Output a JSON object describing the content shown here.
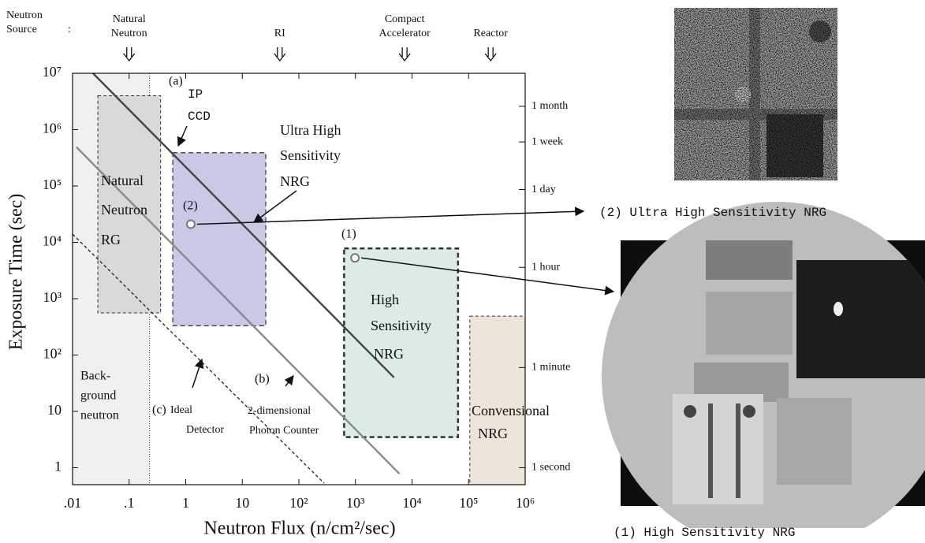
{
  "chart_data": {
    "type": "region",
    "xlabel": "Neutron Flux (n/cm²/sec)",
    "ylabel": "Exposure Time (sec)",
    "xscale": "log",
    "yscale": "log",
    "xlim": [
      0.01,
      1000000
    ],
    "ylim": [
      0.5,
      10000000
    ],
    "y2lim": [
      0.5,
      10000000
    ],
    "xticks": [
      {
        "value": 0.01,
        "label": ".01"
      },
      {
        "value": 0.1,
        "label": ".1"
      },
      1,
      10,
      {
        "value": 100,
        "label": "10²"
      },
      {
        "value": 1000,
        "label": "10³"
      },
      {
        "value": 10000,
        "label": "10⁴"
      },
      {
        "value": 100000,
        "label": "10⁵"
      },
      {
        "value": 1000000,
        "label": "10⁶"
      }
    ],
    "yticks": [
      1,
      10,
      {
        "value": 100,
        "label": "10²"
      },
      {
        "value": 1000,
        "label": "10³"
      },
      {
        "value": 10000,
        "label": "10⁴"
      },
      {
        "value": 100000,
        "label": "10⁵"
      },
      {
        "value": 1000000,
        "label": "10⁶"
      },
      {
        "value": 10000000,
        "label": "10⁷"
      }
    ],
    "y2ticks": [
      {
        "value": 1,
        "label": "1 second"
      },
      {
        "value": 60,
        "label": "1 minute"
      },
      {
        "value": 3600,
        "label": "1 hour"
      },
      {
        "value": 86400,
        "label": "1 day"
      },
      {
        "value": 604800,
        "label": "1 week"
      },
      {
        "value": 2592000,
        "label": "1 month"
      }
    ],
    "source_heading": [
      "Neutron",
      "Source",
      ":"
    ],
    "sources": [
      {
        "label": [
          "Natural",
          "Neutron"
        ],
        "x": 0.1
      },
      {
        "label": [
          "RI"
        ],
        "x": 46
      },
      {
        "label": [
          "Compact",
          "Accelerator"
        ],
        "x": 7400
      },
      {
        "label": [
          "Reactor"
        ],
        "x": 245000
      }
    ],
    "background": {
      "label": [
        "Back-",
        "ground",
        "neutron"
      ],
      "x": [
        0.01,
        0.23
      ],
      "color": "#f0f0f0"
    },
    "regions": [
      {
        "label": [
          "Natural",
          "Neutron",
          "RG"
        ],
        "x": [
          0.028,
          0.36
        ],
        "y": [
          560,
          4000000
        ],
        "color": "#d9d9d9"
      },
      {
        "label": [
          "Ultra High",
          "Sensitivity",
          "NRG"
        ],
        "x": [
          0.59,
          26
        ],
        "y": [
          330,
          390000
        ],
        "color": "#c9c9e6"
      },
      {
        "label": [
          "High",
          "Sensitivity",
          "NRG"
        ],
        "x": [
          630,
          65000
        ],
        "y": [
          3.5,
          7800
        ],
        "color": "#dcece5"
      },
      {
        "label": [
          "Convensional",
          "NRG"
        ],
        "x": [
          105000,
          1000000
        ],
        "y": [
          0.5,
          490
        ],
        "color": "#ede5d9"
      }
    ],
    "series": [
      {
        "name": "(a)",
        "label": [
          "IP",
          "CCD"
        ],
        "color": "#444444",
        "dash": false,
        "x": [
          0.023,
          4800
        ],
        "y": [
          10000000,
          40
        ]
      },
      {
        "name": "(b)",
        "label": [
          "2-dimensional",
          "Photon Counter"
        ],
        "color": "#8a8a8a",
        "dash": false,
        "x": [
          0.0117,
          6000
        ],
        "y": [
          490000,
          0.78
        ]
      },
      {
        "name": "(c)",
        "label": [
          "Ideal",
          "Detector"
        ],
        "color": "#222222",
        "dash": true,
        "x": [
          0.01,
          280
        ],
        "y": [
          14000,
          0.53
        ]
      }
    ],
    "points": [
      {
        "name": "(2)",
        "x": 1.23,
        "y": 21000,
        "caption": "(2) Ultra High Sensitivity NRG"
      },
      {
        "name": "(1)",
        "x": 980,
        "y": 5300,
        "caption": "(1) High Sensitivity NRG"
      }
    ]
  }
}
